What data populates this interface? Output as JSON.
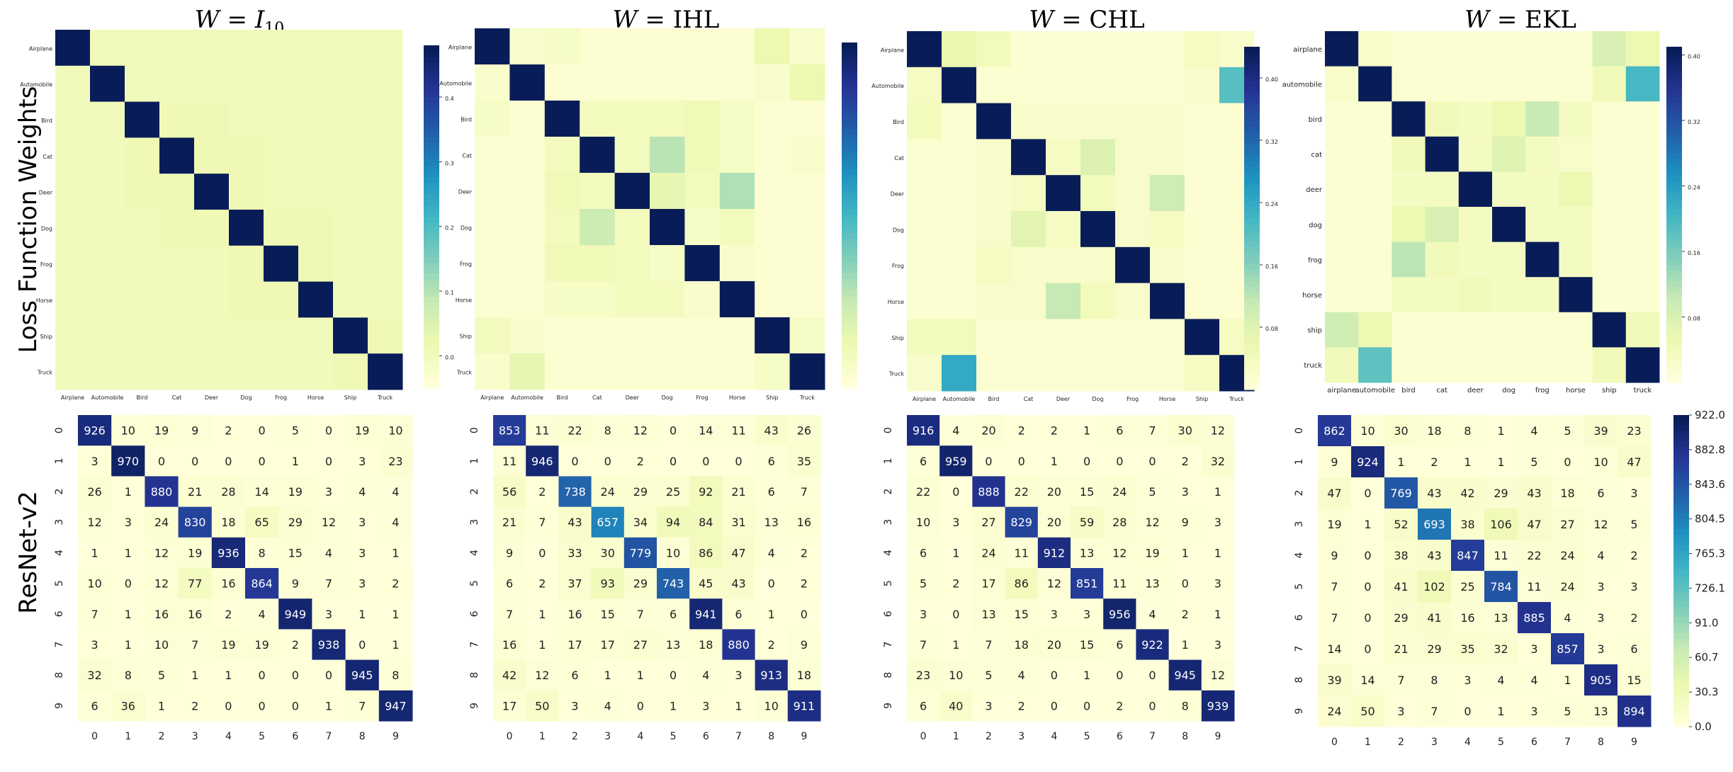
{
  "figure": {
    "column_titles": [
      {
        "var": "W",
        "eq": " = ",
        "rhs": "I",
        "sub": "10"
      },
      {
        "var": "W",
        "eq": " = ",
        "rhs": "IHL",
        "sub": ""
      },
      {
        "var": "W",
        "eq": " = ",
        "rhs": "CHL",
        "sub": ""
      },
      {
        "var": "W",
        "eq": " = ",
        "rhs": "EKL",
        "sub": ""
      }
    ],
    "row_labels": [
      "Loss Function Weights",
      "ResNet-v2"
    ],
    "colormap": [
      "#ffffd9",
      "#edf8b1",
      "#c7e9b4",
      "#7fcdbb",
      "#41b6c4",
      "#1d91c0",
      "#225ea8",
      "#253494",
      "#081d58"
    ]
  },
  "chart_data": [
    {
      "type": "heatmap",
      "title": "W = I10",
      "x_tick_labels": [
        "Airplane",
        "Automobile",
        "Bird",
        "Cat",
        "Deer",
        "Dog",
        "Frog",
        "Horse",
        "Ship",
        "Truck"
      ],
      "y_tick_labels": [
        "Airplane",
        "Automobile",
        "Bird",
        "Cat",
        "Deer",
        "Dog",
        "Frog",
        "Horse",
        "Ship",
        "Truck"
      ],
      "colorbar_ticks": [
        "0.0",
        "0.1",
        "0.2",
        "0.3",
        "0.4"
      ],
      "colorbar_range": [
        -0.05,
        0.48
      ],
      "annotated": false,
      "values": [
        [
          0.5,
          0,
          0,
          0,
          0,
          0,
          0,
          0,
          0,
          0
        ],
        [
          0,
          0.5,
          0,
          0,
          0,
          0,
          0,
          0,
          0,
          0
        ],
        [
          0,
          0,
          0.5,
          0.01,
          0.01,
          0,
          0,
          0,
          0,
          0
        ],
        [
          0,
          0,
          0.01,
          0.5,
          0.01,
          0.01,
          0,
          0,
          0,
          0
        ],
        [
          0,
          0,
          0.01,
          0.01,
          0.5,
          0.01,
          0,
          0,
          0,
          0
        ],
        [
          0,
          0,
          0,
          0.01,
          0.01,
          0.5,
          0.01,
          0.01,
          0,
          0
        ],
        [
          0,
          0,
          0,
          0,
          0,
          0.01,
          0.5,
          0.01,
          0,
          0
        ],
        [
          0,
          0,
          0,
          0,
          0,
          0.01,
          0.01,
          0.5,
          0,
          0
        ],
        [
          0,
          0,
          0,
          0,
          0,
          0,
          0,
          0,
          0.5,
          0.01
        ],
        [
          0,
          0,
          0,
          0,
          0,
          0,
          0,
          0,
          0.01,
          0.5
        ]
      ]
    },
    {
      "type": "heatmap",
      "title": "W = IHL",
      "x_tick_labels": [
        "Airplane",
        "Automobile",
        "Bird",
        "Cat",
        "Deer",
        "Dog",
        "Frog",
        "Horse",
        "Ship",
        "Truck"
      ],
      "y_tick_labels": [
        "Airplane",
        "Automobile",
        "Bird",
        "Cat",
        "Deer",
        "Dog",
        "Frog",
        "Horse",
        "Ship",
        "Truck"
      ],
      "colorbar_ticks": [],
      "colorbar_range": [
        0,
        0.48
      ],
      "annotated": false,
      "values": [
        [
          0.5,
          0.02,
          0.03,
          0.01,
          0.01,
          0.01,
          0.01,
          0.01,
          0.06,
          0.02
        ],
        [
          0.02,
          0.5,
          0.01,
          0.01,
          0.01,
          0.01,
          0.01,
          0.01,
          0.02,
          0.06
        ],
        [
          0.03,
          0.01,
          0.5,
          0.04,
          0.04,
          0.04,
          0.05,
          0.03,
          0.01,
          0.01
        ],
        [
          0.01,
          0.01,
          0.04,
          0.5,
          0.04,
          0.13,
          0.05,
          0.03,
          0.01,
          0.02
        ],
        [
          0.01,
          0.01,
          0.05,
          0.04,
          0.5,
          0.07,
          0.04,
          0.14,
          0.01,
          0.01
        ],
        [
          0.01,
          0.01,
          0.04,
          0.11,
          0.04,
          0.5,
          0.03,
          0.04,
          0.01,
          0.01
        ],
        [
          0.01,
          0.01,
          0.05,
          0.05,
          0.04,
          0.03,
          0.5,
          0.02,
          0.01,
          0.01
        ],
        [
          0.01,
          0.01,
          0.03,
          0.03,
          0.04,
          0.04,
          0.02,
          0.5,
          0.01,
          0.01
        ],
        [
          0.04,
          0.02,
          0.01,
          0.01,
          0.01,
          0.01,
          0.01,
          0.01,
          0.5,
          0.03
        ],
        [
          0.02,
          0.07,
          0.01,
          0.01,
          0.01,
          0.01,
          0.01,
          0.01,
          0.03,
          0.5
        ]
      ]
    },
    {
      "type": "heatmap",
      "title": "W = CHL",
      "x_tick_labels": [
        "Airplane",
        "Automobile",
        "Bird",
        "Cat",
        "Deer",
        "Dog",
        "Frog",
        "Horse",
        "Ship",
        "Truck"
      ],
      "y_tick_labels": [
        "Airplane",
        "Automobile",
        "Bird",
        "Cat",
        "Deer",
        "Dog",
        "Frog",
        "Horse",
        "Ship",
        "Truck"
      ],
      "colorbar_ticks": [
        "0.08",
        "0.16",
        "0.24",
        "0.32",
        "0.40"
      ],
      "colorbar_range": [
        0.0,
        0.44
      ],
      "annotated": false,
      "values": [
        [
          0.5,
          0.06,
          0.04,
          0.01,
          0.01,
          0.01,
          0.01,
          0.01,
          0.03,
          0.02
        ],
        [
          0.03,
          0.5,
          0.01,
          0.01,
          0.01,
          0.01,
          0.01,
          0.01,
          0.02,
          0.2
        ],
        [
          0.04,
          0.01,
          0.5,
          0.02,
          0.02,
          0.02,
          0.02,
          0.02,
          0.01,
          0.01
        ],
        [
          0.01,
          0.01,
          0.02,
          0.5,
          0.03,
          0.08,
          0.02,
          0.02,
          0.01,
          0.01
        ],
        [
          0.01,
          0.01,
          0.02,
          0.03,
          0.5,
          0.04,
          0.02,
          0.1,
          0.01,
          0.01
        ],
        [
          0.01,
          0.01,
          0.02,
          0.07,
          0.03,
          0.5,
          0.02,
          0.03,
          0.01,
          0.01
        ],
        [
          0.01,
          0.01,
          0.03,
          0.02,
          0.02,
          0.02,
          0.5,
          0.02,
          0.01,
          0.01
        ],
        [
          0.01,
          0.01,
          0.02,
          0.02,
          0.11,
          0.04,
          0.02,
          0.5,
          0.01,
          0.01
        ],
        [
          0.04,
          0.04,
          0.01,
          0.01,
          0.01,
          0.01,
          0.01,
          0.01,
          0.5,
          0.03
        ],
        [
          0.02,
          0.24,
          0.01,
          0.01,
          0.01,
          0.01,
          0.01,
          0.01,
          0.03,
          0.5
        ]
      ]
    },
    {
      "type": "heatmap",
      "title": "W = EKL",
      "x_tick_labels": [
        "airplane",
        "automobile",
        "bird",
        "cat",
        "deer",
        "dog",
        "frog",
        "horse",
        "ship",
        "truck"
      ],
      "y_tick_labels": [
        "airplane",
        "automobile",
        "bird",
        "cat",
        "deer",
        "dog",
        "frog",
        "horse",
        "ship",
        "truck"
      ],
      "colorbar_ticks": [
        "0.08",
        "0.16",
        "0.24",
        "0.32",
        "0.40"
      ],
      "colorbar_range": [
        0.0,
        0.41
      ],
      "annotated": false,
      "values": [
        [
          0.5,
          0.02,
          0.01,
          0.01,
          0.01,
          0.01,
          0.01,
          0.01,
          0.08,
          0.05
        ],
        [
          0.02,
          0.5,
          0.01,
          0.01,
          0.01,
          0.01,
          0.01,
          0.01,
          0.04,
          0.2
        ],
        [
          0.01,
          0.01,
          0.5,
          0.04,
          0.03,
          0.05,
          0.1,
          0.03,
          0.01,
          0.01
        ],
        [
          0.01,
          0.01,
          0.04,
          0.5,
          0.03,
          0.07,
          0.03,
          0.02,
          0.01,
          0.01
        ],
        [
          0.01,
          0.01,
          0.03,
          0.03,
          0.5,
          0.03,
          0.03,
          0.05,
          0.01,
          0.01
        ],
        [
          0.01,
          0.01,
          0.05,
          0.08,
          0.03,
          0.5,
          0.03,
          0.03,
          0.01,
          0.01
        ],
        [
          0.01,
          0.01,
          0.11,
          0.04,
          0.03,
          0.03,
          0.5,
          0.03,
          0.01,
          0.01
        ],
        [
          0.01,
          0.01,
          0.03,
          0.03,
          0.04,
          0.03,
          0.03,
          0.5,
          0.01,
          0.01
        ],
        [
          0.09,
          0.05,
          0.01,
          0.01,
          0.01,
          0.01,
          0.01,
          0.01,
          0.5,
          0.04
        ],
        [
          0.04,
          0.18,
          0.01,
          0.01,
          0.01,
          0.01,
          0.01,
          0.01,
          0.04,
          0.5
        ]
      ]
    },
    {
      "type": "heatmap",
      "annotated": true,
      "x_tick_labels": [
        "0",
        "1",
        "2",
        "3",
        "4",
        "5",
        "6",
        "7",
        "8",
        "9"
      ],
      "y_tick_labels": [
        "0",
        "1",
        "2",
        "3",
        "4",
        "5",
        "6",
        "7",
        "8",
        "9"
      ],
      "colorbar_range": [
        0,
        1000
      ],
      "values": [
        [
          926,
          10,
          19,
          9,
          2,
          0,
          5,
          0,
          19,
          10
        ],
        [
          3,
          970,
          0,
          0,
          0,
          0,
          1,
          0,
          3,
          23
        ],
        [
          26,
          1,
          880,
          21,
          28,
          14,
          19,
          3,
          4,
          4
        ],
        [
          12,
          3,
          24,
          830,
          18,
          65,
          29,
          12,
          3,
          4
        ],
        [
          1,
          1,
          12,
          19,
          936,
          8,
          15,
          4,
          3,
          1
        ],
        [
          10,
          0,
          12,
          77,
          16,
          864,
          9,
          7,
          3,
          2
        ],
        [
          7,
          1,
          16,
          16,
          2,
          4,
          949,
          3,
          1,
          1
        ],
        [
          3,
          1,
          10,
          7,
          19,
          19,
          2,
          938,
          0,
          1
        ],
        [
          32,
          8,
          5,
          1,
          1,
          0,
          0,
          0,
          945,
          8
        ],
        [
          6,
          36,
          1,
          2,
          0,
          0,
          0,
          1,
          7,
          947
        ]
      ]
    },
    {
      "type": "heatmap",
      "annotated": true,
      "x_tick_labels": [
        "0",
        "1",
        "2",
        "3",
        "4",
        "5",
        "6",
        "7",
        "8",
        "9"
      ],
      "y_tick_labels": [
        "0",
        "1",
        "2",
        "3",
        "4",
        "5",
        "6",
        "7",
        "8",
        "9"
      ],
      "colorbar_range": [
        0,
        1000
      ],
      "values": [
        [
          853,
          11,
          22,
          8,
          12,
          0,
          14,
          11,
          43,
          26
        ],
        [
          11,
          946,
          0,
          0,
          2,
          0,
          0,
          0,
          6,
          35
        ],
        [
          56,
          2,
          738,
          24,
          29,
          25,
          92,
          21,
          6,
          7
        ],
        [
          21,
          7,
          43,
          657,
          34,
          94,
          84,
          31,
          13,
          16
        ],
        [
          9,
          0,
          33,
          30,
          779,
          10,
          86,
          47,
          4,
          2
        ],
        [
          6,
          2,
          37,
          93,
          29,
          743,
          45,
          43,
          0,
          2
        ],
        [
          7,
          1,
          16,
          15,
          7,
          6,
          941,
          6,
          1,
          0
        ],
        [
          16,
          1,
          17,
          17,
          27,
          13,
          18,
          880,
          2,
          9
        ],
        [
          42,
          12,
          6,
          1,
          1,
          0,
          4,
          3,
          913,
          18
        ],
        [
          17,
          50,
          3,
          4,
          0,
          1,
          3,
          1,
          10,
          911
        ]
      ]
    },
    {
      "type": "heatmap",
      "annotated": true,
      "x_tick_labels": [
        "0",
        "1",
        "2",
        "3",
        "4",
        "5",
        "6",
        "7",
        "8",
        "9"
      ],
      "y_tick_labels": [
        "0",
        "1",
        "2",
        "3",
        "4",
        "5",
        "6",
        "7",
        "8",
        "9"
      ],
      "colorbar_range": [
        0,
        1000
      ],
      "values": [
        [
          916,
          4,
          20,
          2,
          2,
          1,
          6,
          7,
          30,
          12
        ],
        [
          6,
          959,
          0,
          0,
          1,
          0,
          0,
          0,
          2,
          32
        ],
        [
          22,
          0,
          888,
          22,
          20,
          15,
          24,
          5,
          3,
          1
        ],
        [
          10,
          3,
          27,
          829,
          20,
          59,
          28,
          12,
          9,
          3
        ],
        [
          6,
          1,
          24,
          11,
          912,
          13,
          12,
          19,
          1,
          1
        ],
        [
          5,
          2,
          17,
          86,
          12,
          851,
          11,
          13,
          0,
          3
        ],
        [
          3,
          0,
          13,
          15,
          3,
          3,
          956,
          4,
          2,
          1
        ],
        [
          7,
          1,
          7,
          18,
          20,
          15,
          6,
          922,
          1,
          3
        ],
        [
          23,
          10,
          5,
          4,
          0,
          1,
          0,
          0,
          945,
          12
        ],
        [
          6,
          40,
          3,
          2,
          0,
          0,
          2,
          0,
          8,
          939
        ]
      ]
    },
    {
      "type": "heatmap",
      "annotated": true,
      "x_tick_labels": [
        "0",
        "1",
        "2",
        "3",
        "4",
        "5",
        "6",
        "7",
        "8",
        "9"
      ],
      "y_tick_labels": [
        "0",
        "1",
        "2",
        "3",
        "4",
        "5",
        "6",
        "7",
        "8",
        "9"
      ],
      "colorbar_ticks": [
        "922.0",
        "882.8",
        "843.6",
        "804.5",
        "765.3",
        "726.1",
        "91.0",
        "60.7",
        "30.3",
        "0.0"
      ],
      "colorbar_range": [
        0,
        1000
      ],
      "values": [
        [
          862,
          10,
          30,
          18,
          8,
          1,
          4,
          5,
          39,
          23
        ],
        [
          9,
          924,
          1,
          2,
          1,
          1,
          5,
          0,
          10,
          47
        ],
        [
          47,
          0,
          769,
          43,
          42,
          29,
          43,
          18,
          6,
          3
        ],
        [
          19,
          1,
          52,
          693,
          38,
          106,
          47,
          27,
          12,
          5
        ],
        [
          9,
          0,
          38,
          43,
          847,
          11,
          22,
          24,
          4,
          2
        ],
        [
          7,
          0,
          41,
          102,
          25,
          784,
          11,
          24,
          3,
          3
        ],
        [
          7,
          0,
          29,
          41,
          16,
          13,
          885,
          4,
          3,
          2
        ],
        [
          14,
          0,
          21,
          29,
          35,
          32,
          3,
          857,
          3,
          6
        ],
        [
          39,
          14,
          7,
          8,
          3,
          4,
          4,
          1,
          905,
          15
        ],
        [
          24,
          50,
          3,
          7,
          0,
          1,
          3,
          5,
          13,
          894
        ]
      ]
    }
  ]
}
